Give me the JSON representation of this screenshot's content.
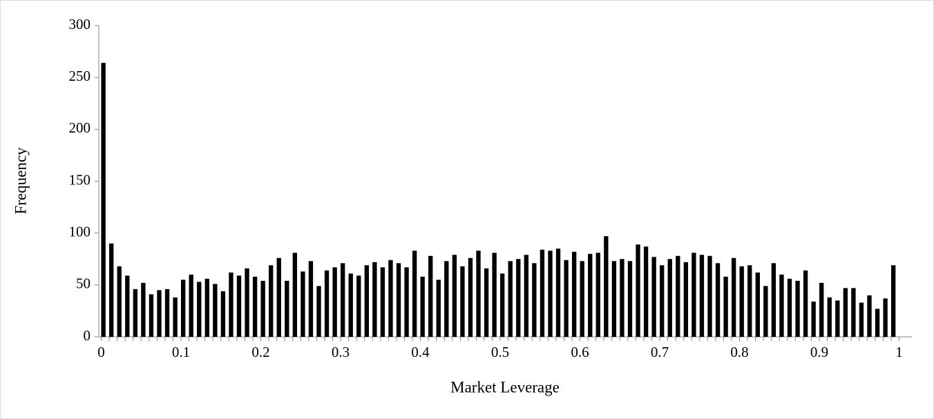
{
  "chart_data": {
    "type": "histogram",
    "x_label": "Market Leverage",
    "y_label": "Frequency",
    "bins": [
      0,
      0.01,
      0.02,
      0.03,
      0.04,
      0.05,
      0.06,
      0.07,
      0.08,
      0.09,
      0.1,
      0.11,
      0.12,
      0.13,
      0.14,
      0.15,
      0.16,
      0.17,
      0.18,
      0.19,
      0.2,
      0.21,
      0.22,
      0.23,
      0.24,
      0.25,
      0.26,
      0.27,
      0.28,
      0.29,
      0.3,
      0.31,
      0.32,
      0.33,
      0.34,
      0.35,
      0.36,
      0.37,
      0.38,
      0.39,
      0.4,
      0.41,
      0.42,
      0.43,
      0.44,
      0.45,
      0.46,
      0.47,
      0.48,
      0.49,
      0.5,
      0.51,
      0.52,
      0.53,
      0.54,
      0.55,
      0.56,
      0.57,
      0.58,
      0.59,
      0.6,
      0.61,
      0.62,
      0.63,
      0.64,
      0.65,
      0.66,
      0.67,
      0.68,
      0.69,
      0.7,
      0.71,
      0.72,
      0.73,
      0.74,
      0.75,
      0.76,
      0.77,
      0.78,
      0.79,
      0.8,
      0.81,
      0.82,
      0.83,
      0.84,
      0.85,
      0.86,
      0.87,
      0.88,
      0.89,
      0.9,
      0.91,
      0.92,
      0.93,
      0.94,
      0.95,
      0.96,
      0.97,
      0.98,
      0.99,
      1
    ],
    "values": [
      264,
      90,
      68,
      59,
      46,
      52,
      41,
      45,
      46,
      38,
      55,
      60,
      53,
      56,
      51,
      44,
      62,
      59,
      66,
      58,
      54,
      69,
      76,
      54,
      81,
      63,
      73,
      49,
      64,
      67,
      71,
      61,
      59,
      69,
      72,
      67,
      74,
      71,
      67,
      83,
      58,
      78,
      55,
      73,
      79,
      68,
      76,
      83,
      66,
      81,
      61,
      73,
      75,
      79,
      71,
      84,
      83,
      85,
      74,
      82,
      73,
      80,
      81,
      97,
      73,
      75,
      73,
      89,
      87,
      77,
      69,
      75,
      78,
      72,
      81,
      79,
      78,
      71,
      58,
      76,
      68,
      69,
      62,
      49,
      71,
      60,
      56,
      54,
      64,
      34,
      52,
      38,
      35,
      47,
      47,
      33,
      40,
      27,
      37,
      69
    ],
    "color": "#000000",
    "xlim": [
      -0.003,
      1.016
    ],
    "xticks": [
      0,
      0.1,
      0.2,
      0.3,
      0.4,
      0.5,
      0.6,
      0.7,
      0.8,
      0.9,
      1
    ],
    "ylim": [
      0,
      300
    ],
    "yticks": [
      0,
      50,
      100,
      150,
      200,
      250,
      300
    ],
    "grid": false
  }
}
